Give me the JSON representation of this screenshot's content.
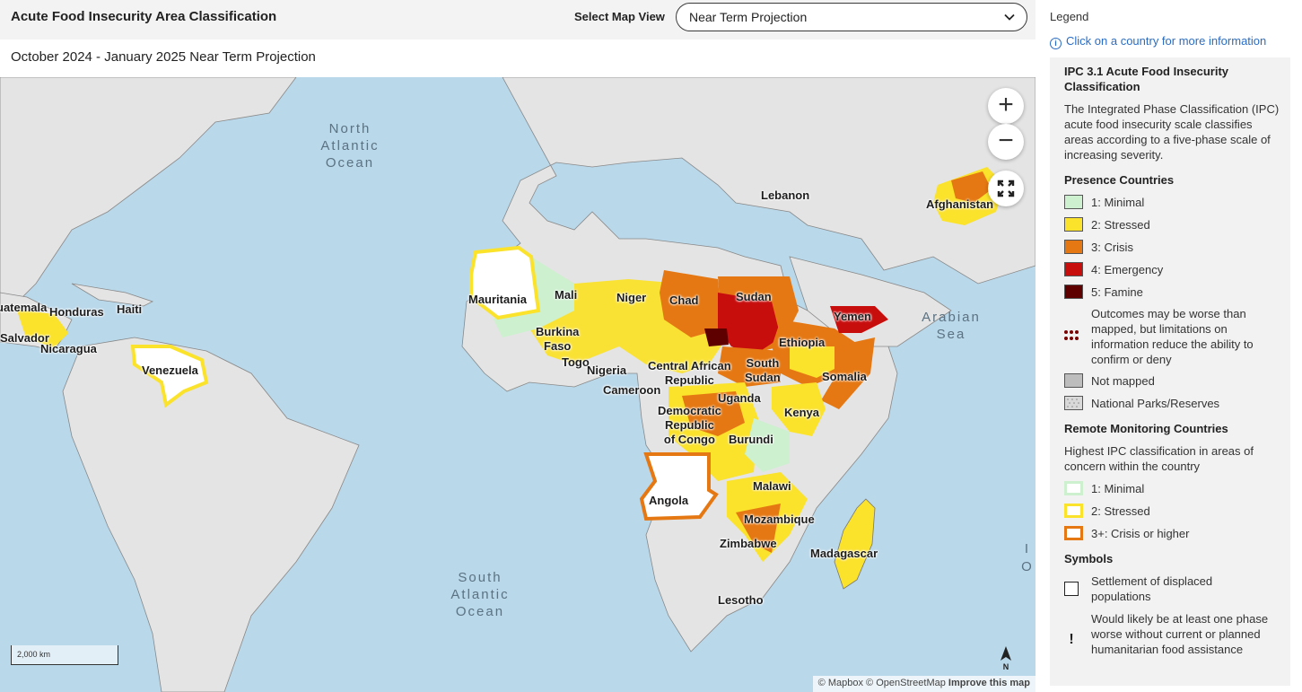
{
  "header": {
    "title": "Acute Food Insecurity Area Classification",
    "select_label": "Select Map View",
    "select_value": "Near Term Projection",
    "subtitle": "October 2024 - January 2025 Near Term Projection"
  },
  "map": {
    "countries": [
      "Lebanon",
      "Afghanistan",
      "Mauritania",
      "Mali",
      "Niger",
      "Chad",
      "Sudan",
      "Yemen",
      "Haiti",
      "Honduras",
      "uatemala",
      "Salvador",
      "Nicaragua",
      "Venezuela",
      "Burkina Faso",
      "Togo",
      "Nigeria",
      "Central African Republic",
      "Ethiopia",
      "South Sudan",
      "Somalia",
      "Cameroon",
      "Uganda",
      "Kenya",
      "Democratic Republic of Congo",
      "Burundi",
      "Angola",
      "Malawi",
      "Mozambique",
      "Zimbabwe",
      "Madagascar",
      "Lesotho"
    ],
    "oceans": {
      "north_atlantic": "North Atlantic Ocean",
      "arabian_sea": "Arabian Sea",
      "south_atlantic": "South Atlantic Ocean",
      "indian_partial": "I O"
    },
    "zoom_in": "+",
    "zoom_out": "−",
    "scale": "2,000 km",
    "north": "N",
    "attribution": {
      "mapbox": "© Mapbox",
      "osm": "© OpenStreetMap",
      "improve": "Improve this map"
    },
    "colors": {
      "water": "#b9d8ea",
      "land": "#e4e4e4",
      "border": "#555555"
    }
  },
  "legend": {
    "title": "Legend",
    "info": "Click on a country for more information",
    "ipc_heading": "IPC 3.1 Acute Food Insecurity Classification",
    "ipc_description": "The Integrated Phase Classification (IPC) acute food insecurity scale classifies areas according to a five-phase scale of increasing severity.",
    "presence_heading": "Presence Countries",
    "presence_items": [
      {
        "label": "1: Minimal",
        "color": "#cdf0cf"
      },
      {
        "label": "2: Stressed",
        "color": "#fbe22b"
      },
      {
        "label": "3: Crisis",
        "color": "#e57812"
      },
      {
        "label": "4: Emergency",
        "color": "#c80d0d"
      },
      {
        "label": "5: Famine",
        "color": "#5f0000"
      }
    ],
    "limited_info": "Outcomes may be worse than mapped, but limitations on information reduce the ability to confirm or deny",
    "not_mapped": "Not mapped",
    "parks": "National Parks/Reserves",
    "remote_heading": "Remote Monitoring Countries",
    "remote_description": "Highest IPC classification in areas of concern within the country",
    "remote_items": [
      {
        "label": "1: Minimal",
        "color": "#cdf0cf"
      },
      {
        "label": "2: Stressed",
        "color": "#fbe22b"
      },
      {
        "label": "3+: Crisis or higher",
        "color": "#e57812"
      }
    ],
    "symbols_heading": "Symbols",
    "settlement": "Settlement of displaced populations",
    "assistance": "Would likely be at least one phase worse without current or planned humanitarian food assistance",
    "assistance_symbol": "!"
  }
}
